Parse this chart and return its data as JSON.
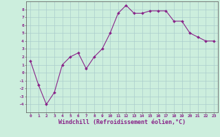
{
  "x": [
    0,
    1,
    2,
    3,
    4,
    5,
    6,
    7,
    8,
    9,
    10,
    11,
    12,
    13,
    14,
    15,
    16,
    17,
    18,
    19,
    20,
    21,
    22,
    23
  ],
  "y": [
    1.5,
    -1.5,
    -4.0,
    -2.5,
    1.0,
    2.0,
    2.5,
    0.5,
    2.0,
    3.0,
    5.0,
    7.5,
    8.5,
    7.5,
    7.5,
    7.8,
    7.8,
    7.8,
    6.5,
    6.5,
    5.0,
    4.5,
    4.0,
    4.0
  ],
  "line_color": "#882288",
  "marker": "D",
  "markersize": 2.0,
  "linewidth": 0.8,
  "bg_color": "#cceedd",
  "grid_color": "#aacccc",
  "xlabel": "Windchill (Refroidissement éolien,°C)",
  "ylabel": "",
  "xlim": [
    -0.5,
    23.5
  ],
  "ylim": [
    -5,
    9
  ],
  "yticks": [
    -4,
    -3,
    -2,
    -1,
    0,
    1,
    2,
    3,
    4,
    5,
    6,
    7,
    8
  ],
  "xticks": [
    0,
    1,
    2,
    3,
    4,
    5,
    6,
    7,
    8,
    9,
    10,
    11,
    12,
    13,
    14,
    15,
    16,
    17,
    18,
    19,
    20,
    21,
    22,
    23
  ],
  "tick_fontsize": 4.5,
  "xlabel_fontsize": 6.0,
  "spine_color": "#666666"
}
